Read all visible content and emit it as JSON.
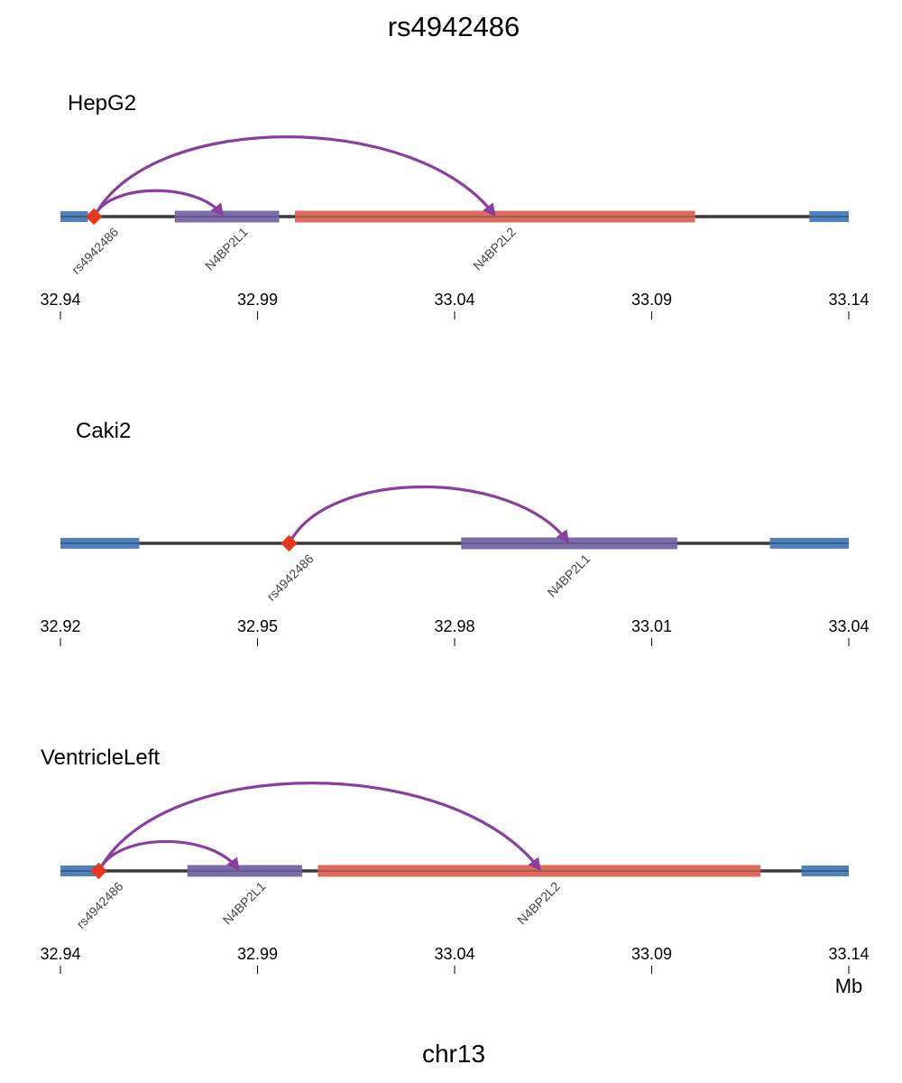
{
  "title": "rs4942486",
  "chromosome_label": "chr13",
  "unit_label": "Mb",
  "colors": {
    "axis_line": "#3a3a3a",
    "flank": "#4f81bd",
    "snp": "#e8381b",
    "arc": "#8a3f9f",
    "gene_n4bp2l1": "#7b6cab",
    "gene_n4bp2l2": "#e06a5c"
  },
  "panels": [
    {
      "name": "HepG2",
      "range": [
        32.94,
        33.14
      ],
      "ticks": [
        "32.94",
        "32.99",
        "33.04",
        "33.09",
        "33.14"
      ],
      "tick_values": [
        32.94,
        32.99,
        33.04,
        33.09,
        33.14
      ],
      "flanks": [
        [
          32.94,
          32.947
        ],
        [
          33.13,
          33.14
        ]
      ],
      "snp": {
        "label": "rs4942486",
        "pos": 32.9485
      },
      "genes": [
        {
          "label": "N4BP2L1",
          "start": 32.969,
          "end": 32.9955,
          "color_key": "gene_n4bp2l1"
        },
        {
          "label": "N4BP2L2",
          "start": 32.9995,
          "end": 33.101,
          "color_key": "gene_n4bp2l2"
        }
      ],
      "loops": [
        {
          "to": 32.9815,
          "height": 0.32
        },
        {
          "to": 33.0505,
          "height": 1.0
        }
      ]
    },
    {
      "name": "Caki2",
      "range": [
        32.92,
        33.04
      ],
      "ticks": [
        "32.92",
        "32.95",
        "32.98",
        "33.01",
        "33.04"
      ],
      "tick_values": [
        32.92,
        32.95,
        32.98,
        33.01,
        33.04
      ],
      "flanks": [
        [
          32.92,
          32.932
        ],
        [
          33.028,
          33.04
        ]
      ],
      "snp": {
        "label": "rs4942486",
        "pos": 32.9548
      },
      "genes": [
        {
          "label": "N4BP2L1",
          "start": 32.981,
          "end": 33.0139,
          "color_key": "gene_n4bp2l1"
        }
      ],
      "loops": [
        {
          "to": 32.9975,
          "height": 1.0
        }
      ]
    },
    {
      "name": "VentricleLeft",
      "range": [
        32.94,
        33.14
      ],
      "ticks": [
        "32.94",
        "32.99",
        "33.04",
        "33.09",
        "33.14"
      ],
      "tick_values": [
        32.94,
        32.99,
        33.04,
        33.09,
        33.14
      ],
      "flanks": [
        [
          32.94,
          32.949
        ],
        [
          33.128,
          33.14
        ]
      ],
      "snp": {
        "label": "rs4942486",
        "pos": 32.9497
      },
      "genes": [
        {
          "label": "N4BP2L1",
          "start": 32.9722,
          "end": 33.0013,
          "color_key": "gene_n4bp2l1"
        },
        {
          "label": "N4BP2L2",
          "start": 33.0053,
          "end": 33.1176,
          "color_key": "gene_n4bp2l2"
        }
      ],
      "loops": [
        {
          "to": 32.9855,
          "height": 0.33
        },
        {
          "to": 33.062,
          "height": 1.0
        }
      ]
    }
  ]
}
